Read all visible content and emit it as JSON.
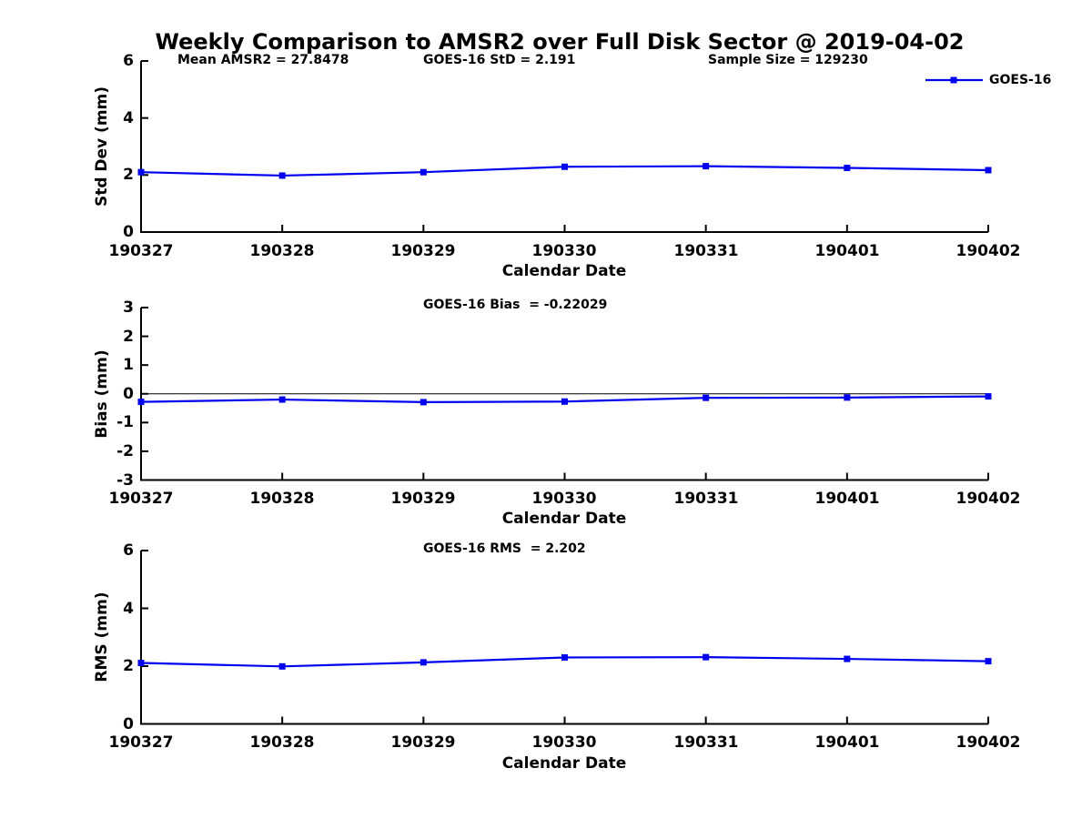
{
  "figure": {
    "title": "Weekly Comparison to AMSR2 over Full Disk Sector @ 2019-04-02",
    "background_color": "#ffffff",
    "axis_color": "#000000",
    "series_color": "#0000ee"
  },
  "legend": {
    "label": "GOES-16",
    "position": "top-right",
    "marker": "square-icon"
  },
  "chart_data": [
    {
      "type": "line",
      "panel": "std-dev",
      "annotations": [
        "Mean AMSR2 = 27.8478",
        "GOES-16 StD = 2.191",
        "Sample Size = 129230"
      ],
      "x": [
        "190327",
        "190328",
        "190329",
        "190330",
        "190331",
        "190401",
        "190402"
      ],
      "series": [
        {
          "name": "GOES-16",
          "color": "#0000ee",
          "marker": "square",
          "values": [
            2.1,
            1.98,
            2.1,
            2.29,
            2.31,
            2.25,
            2.17
          ]
        }
      ],
      "xlabel": "Calendar Date",
      "ylabel": "Std Dev (mm)",
      "ylim": [
        0,
        6
      ],
      "yticks": [
        0,
        2,
        4,
        6
      ],
      "grid": false,
      "zero_line": false
    },
    {
      "type": "line",
      "panel": "bias",
      "annotations": [
        "GOES-16 Bias  = -0.22029"
      ],
      "x": [
        "190327",
        "190328",
        "190329",
        "190330",
        "190331",
        "190401",
        "190402"
      ],
      "series": [
        {
          "name": "GOES-16",
          "color": "#0000ee",
          "marker": "square",
          "values": [
            -0.28,
            -0.2,
            -0.29,
            -0.27,
            -0.14,
            -0.13,
            -0.09
          ]
        }
      ],
      "xlabel": "Calendar Date",
      "ylabel": "Bias (mm)",
      "ylim": [
        -3,
        3
      ],
      "yticks": [
        -3,
        -2,
        -1,
        0,
        1,
        2,
        3
      ],
      "grid": false,
      "zero_line": true
    },
    {
      "type": "line",
      "panel": "rms",
      "annotations": [
        "GOES-16 RMS  = 2.202"
      ],
      "x": [
        "190327",
        "190328",
        "190329",
        "190330",
        "190331",
        "190401",
        "190402"
      ],
      "series": [
        {
          "name": "GOES-16",
          "color": "#0000ee",
          "marker": "square",
          "values": [
            2.11,
            1.99,
            2.13,
            2.3,
            2.31,
            2.25,
            2.17
          ]
        }
      ],
      "xlabel": "Calendar Date",
      "ylabel": "RMS (mm)",
      "ylim": [
        0,
        6
      ],
      "yticks": [
        0,
        2,
        4,
        6
      ],
      "grid": false,
      "zero_line": false
    }
  ]
}
